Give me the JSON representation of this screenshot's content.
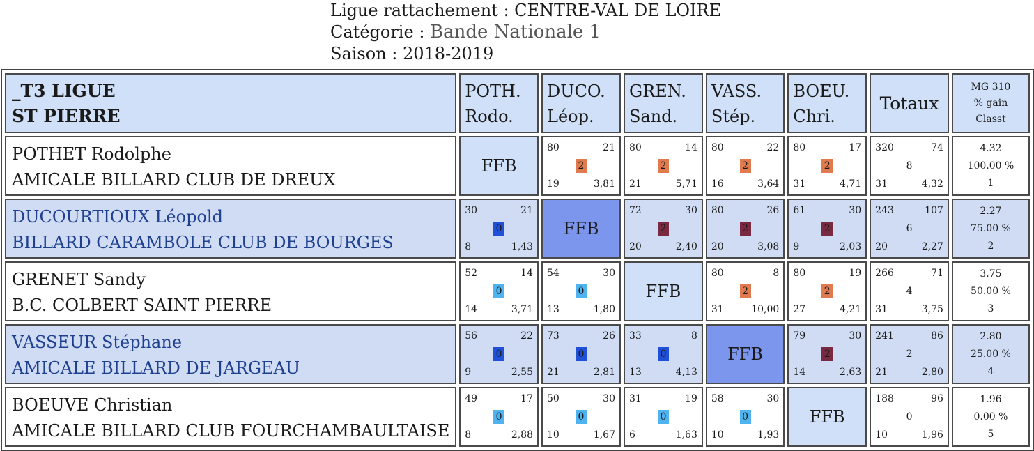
{
  "header": {
    "ligue_label": "Ligue rattachement : ",
    "ligue_value": "CENTRE-VAL DE LOIRE",
    "categorie_label": "Catégorie : ",
    "categorie_value": "Bande Nationale 1",
    "saison_label": "Saison : ",
    "saison_value": "2018-2019"
  },
  "table": {
    "title_line1": "_T3 LIGUE",
    "title_line2": "ST PIERRE",
    "columns": [
      {
        "line1": "POTH.",
        "line2": "Rodo."
      },
      {
        "line1": "DUCO.",
        "line2": "Léop."
      },
      {
        "line1": "GREN.",
        "line2": "Sand."
      },
      {
        "line1": "VASS.",
        "line2": "Stép."
      },
      {
        "line1": "BOEU.",
        "line2": "Chri."
      }
    ],
    "totals_label": "Totaux",
    "mg_line1": "MG 310",
    "mg_line2": "% gain",
    "mg_line3": "Classt",
    "rows": [
      {
        "name": "POTHET Rodolphe",
        "club": "AMICALE BILLARD CLUB DE DREUX",
        "cells": [
          {
            "ffb": "FFB"
          },
          {
            "tl": "80",
            "tr": "21",
            "badge": "2",
            "bl": "19",
            "br": "3,81"
          },
          {
            "tl": "80",
            "tr": "14",
            "badge": "2",
            "bl": "21",
            "br": "5,71"
          },
          {
            "tl": "80",
            "tr": "22",
            "badge": "2",
            "bl": "16",
            "br": "3,64"
          },
          {
            "tl": "80",
            "tr": "17",
            "badge": "2",
            "bl": "31",
            "br": "4,71"
          }
        ],
        "totals": {
          "tl": "320",
          "tr": "74",
          "mid": "8",
          "bl": "31",
          "br": "4,32"
        },
        "mg": {
          "a": "4.32",
          "b": "100.00 %",
          "c": "1"
        }
      },
      {
        "name": "DUCOURTIOUX Léopold",
        "club": "BILLARD CARAMBOLE CLUB DE BOURGES",
        "cells": [
          {
            "tl": "30",
            "tr": "21",
            "badge": "0",
            "bl": "8",
            "br": "1,43"
          },
          {
            "ffb": "FFB"
          },
          {
            "tl": "72",
            "tr": "30",
            "badge": "2",
            "bl": "20",
            "br": "2,40"
          },
          {
            "tl": "80",
            "tr": "26",
            "badge": "2",
            "bl": "20",
            "br": "3,08"
          },
          {
            "tl": "61",
            "tr": "30",
            "badge": "2",
            "bl": "9",
            "br": "2,03"
          }
        ],
        "totals": {
          "tl": "243",
          "tr": "107",
          "mid": "6",
          "bl": "20",
          "br": "2,27"
        },
        "mg": {
          "a": "2.27",
          "b": "75.00 %",
          "c": "2"
        }
      },
      {
        "name": "GRENET Sandy",
        "club": "B.C. COLBERT SAINT PIERRE",
        "cells": [
          {
            "tl": "52",
            "tr": "14",
            "badge": "0",
            "bl": "14",
            "br": "3,71"
          },
          {
            "tl": "54",
            "tr": "30",
            "badge": "0",
            "bl": "13",
            "br": "1,80"
          },
          {
            "ffb": "FFB"
          },
          {
            "tl": "80",
            "tr": "8",
            "badge": "2",
            "bl": "31",
            "br": "10,00"
          },
          {
            "tl": "80",
            "tr": "19",
            "badge": "2",
            "bl": "27",
            "br": "4,21"
          }
        ],
        "totals": {
          "tl": "266",
          "tr": "71",
          "mid": "4",
          "bl": "31",
          "br": "3,75"
        },
        "mg": {
          "a": "3.75",
          "b": "50.00 %",
          "c": "3"
        }
      },
      {
        "name": "VASSEUR Stéphane",
        "club": "AMICALE BILLARD DE JARGEAU",
        "cells": [
          {
            "tl": "56",
            "tr": "22",
            "badge": "0",
            "bl": "9",
            "br": "2,55"
          },
          {
            "tl": "73",
            "tr": "26",
            "badge": "0",
            "bl": "21",
            "br": "2,81"
          },
          {
            "tl": "33",
            "tr": "8",
            "badge": "0",
            "bl": "13",
            "br": "4,13"
          },
          {
            "ffb": "FFB"
          },
          {
            "tl": "79",
            "tr": "30",
            "badge": "2",
            "bl": "14",
            "br": "2,63"
          }
        ],
        "totals": {
          "tl": "241",
          "tr": "86",
          "mid": "2",
          "bl": "21",
          "br": "2,80"
        },
        "mg": {
          "a": "2.80",
          "b": "25.00 %",
          "c": "4"
        }
      },
      {
        "name": "BOEUVE Christian",
        "club": "AMICALE BILLARD CLUB FOURCHAMBAULTAISE",
        "cells": [
          {
            "tl": "49",
            "tr": "17",
            "badge": "0",
            "bl": "8",
            "br": "2,88"
          },
          {
            "tl": "50",
            "tr": "30",
            "badge": "0",
            "bl": "10",
            "br": "1,67"
          },
          {
            "tl": "31",
            "tr": "19",
            "badge": "0",
            "bl": "6",
            "br": "1,63"
          },
          {
            "tl": "58",
            "tr": "30",
            "badge": "0",
            "bl": "10",
            "br": "1,93"
          },
          {
            "ffb": "FFB"
          }
        ],
        "totals": {
          "tl": "188",
          "tr": "96",
          "mid": "0",
          "bl": "10",
          "br": "1,96"
        },
        "mg": {
          "a": "1.96",
          "b": "0.00 %",
          "c": "5"
        }
      }
    ]
  },
  "colors": {
    "win_badge": "#e07b50",
    "win_badge_dark": "#7a2a40",
    "loss_badge": "#4fb3f0",
    "loss_badge_dark": "#2050d8",
    "header_bg": "#cfe0f8",
    "row_blue_bg": "#cfdcf3",
    "ffb_dark": "#7b96ec"
  }
}
